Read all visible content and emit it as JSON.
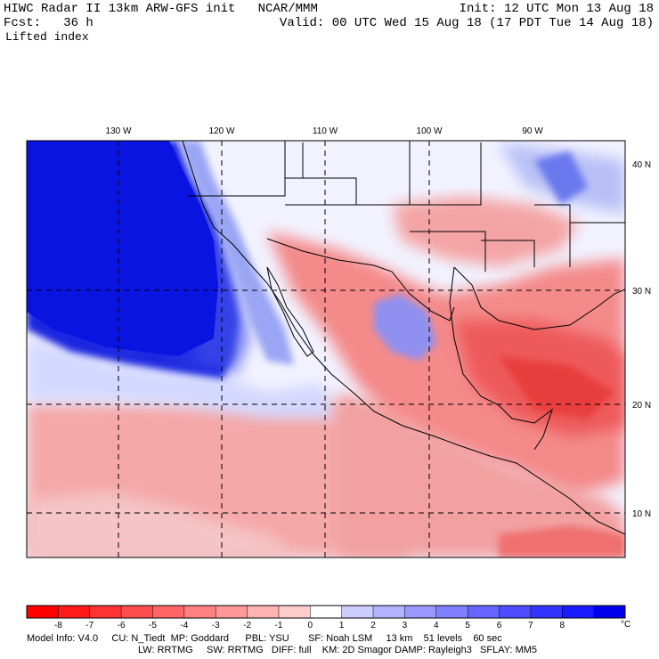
{
  "header": {
    "line1_left": "HIWC Radar II 13km ARW-GFS init   NCAR/MMM",
    "line2_left": "Fcst:   36 h",
    "line3_left": "Lifted index",
    "line1_right": "Init: 12 UTC Mon 13 Aug 18",
    "line2_right": "Valid: 00 UTC Wed 15 Aug 18 (17 PDT Tue 14 Aug 18)"
  },
  "map": {
    "lon_labels": [
      "130 W",
      "120 W",
      "110 W",
      "100 W",
      "90 W"
    ],
    "lat_labels": [
      "40 N",
      "30 N",
      "20 N",
      "10 N"
    ],
    "colors": {
      "ocean_stable": "#1020e0",
      "neutral": "#f4f4ff",
      "unstable": "#f07070",
      "border": "#000000"
    }
  },
  "colorbar": {
    "ticks": [
      "-8",
      "-7",
      "-6",
      "-5",
      "-4",
      "-3",
      "-2",
      "-1",
      "0",
      "1",
      "2",
      "3",
      "4",
      "5",
      "6",
      "7",
      "8"
    ],
    "unit": "°C",
    "colors": [
      "#ff0000",
      "#ff1a1a",
      "#ff3333",
      "#ff4d4d",
      "#ff6666",
      "#ff8080",
      "#ff9999",
      "#ffb3b3",
      "#ffcccc",
      "#ffffff",
      "#ccccff",
      "#b3b3ff",
      "#9999ff",
      "#8080ff",
      "#6666ff",
      "#4d4dff",
      "#3333ff",
      "#1a1aff",
      "#0000ee"
    ]
  },
  "footer": {
    "line1": "Model Info: V4.0     CU: N_Tiedt  MP: Goddard      PBL: YSU       SF: Noah LSM     13 km    51 levels    60 sec",
    "line2": "LW: RRTMG     SW: RRTMG   DIFF: full    KM: 2D Smagor DAMP: Rayleigh3   SFLAY: MM5"
  }
}
